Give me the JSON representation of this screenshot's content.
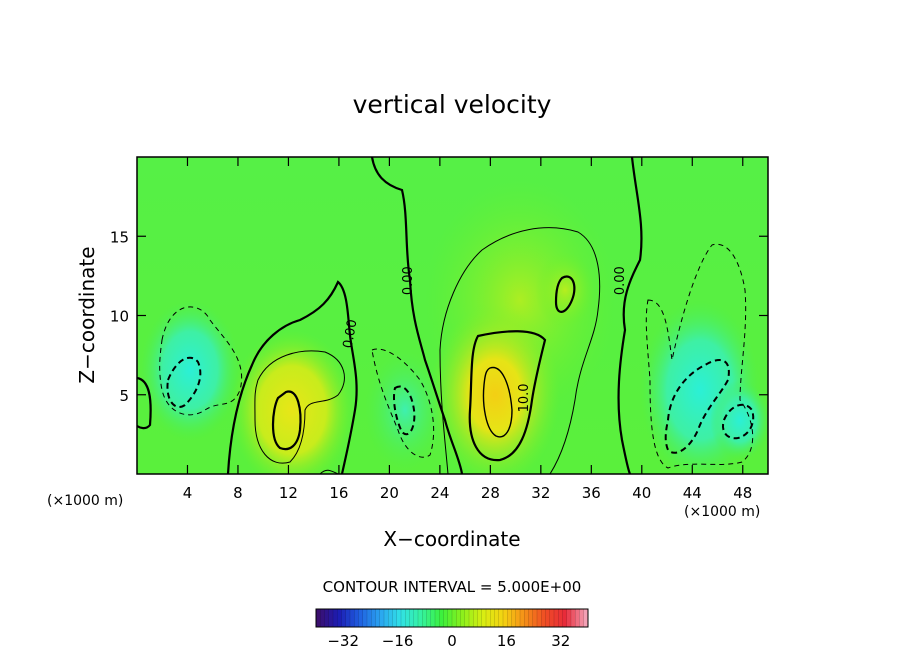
{
  "chart_data": {
    "type": "heatmap",
    "title": "vertical velocity",
    "xlabel": "X−coordinate",
    "ylabel": "Z−coordinate",
    "x_unit_left": "(×1000 m)",
    "x_unit_right": "(×1000 m)",
    "xlim": [
      0,
      50
    ],
    "ylim": [
      0,
      20
    ],
    "x_ticks": [
      4,
      8,
      12,
      16,
      20,
      24,
      28,
      32,
      36,
      40,
      44,
      48
    ],
    "x_tick_labels": [
      "4",
      "8",
      "12",
      "16",
      "20",
      "24",
      "28",
      "32",
      "36",
      "40",
      "44",
      "48"
    ],
    "y_ticks": [
      5,
      10,
      15
    ],
    "y_tick_labels": [
      "5",
      "10",
      "15"
    ],
    "grid": false,
    "contour_interval_text": "CONTOUR INTERVAL = 5.000E+00",
    "colorbar": {
      "range": [
        -40,
        40
      ],
      "ticks": [
        -32,
        -16,
        0,
        16,
        32
      ],
      "tick_labels": [
        "−32",
        "−16",
        "0",
        "16",
        "32"
      ],
      "colors": [
        "#3b0f6f",
        "#1c1cb4",
        "#1f5fe0",
        "#2aa3f0",
        "#31e1e6",
        "#35f2a0",
        "#3cf03c",
        "#8cf01c",
        "#d8ee12",
        "#f4d212",
        "#f59018",
        "#ef4e24",
        "#e82a3a",
        "#f2a0b4"
      ]
    },
    "contour_labels": [
      {
        "text": "0.00",
        "x": 21.8,
        "y": 12.2,
        "angle": -90
      },
      {
        "text": "0.00",
        "x": 17.2,
        "y": 8.8,
        "angle": -80
      },
      {
        "text": "0.00",
        "x": 38.6,
        "y": 12.2,
        "angle": -90
      },
      {
        "text": "10.0",
        "x": 31.0,
        "y": 4.8,
        "angle": -90
      }
    ],
    "features": [
      {
        "kind": "updraft",
        "center_x": 12.0,
        "center_z": 3.2,
        "peak": 15
      },
      {
        "kind": "updraft",
        "center_x": 28.4,
        "center_z": 4.2,
        "peak": 20
      },
      {
        "kind": "updraft",
        "center_x": 34.0,
        "center_z": 11.5,
        "peak": 10
      },
      {
        "kind": "downdraft",
        "center_x": 4.0,
        "center_z": 6.5,
        "peak": -10
      },
      {
        "kind": "downdraft",
        "center_x": 21.0,
        "center_z": 4.5,
        "peak": -10
      },
      {
        "kind": "downdraft",
        "center_x": 44.5,
        "center_z": 4.5,
        "peak": -10
      },
      {
        "kind": "downdraft",
        "center_x": 47.0,
        "center_z": 3.5,
        "peak": -10
      }
    ]
  }
}
